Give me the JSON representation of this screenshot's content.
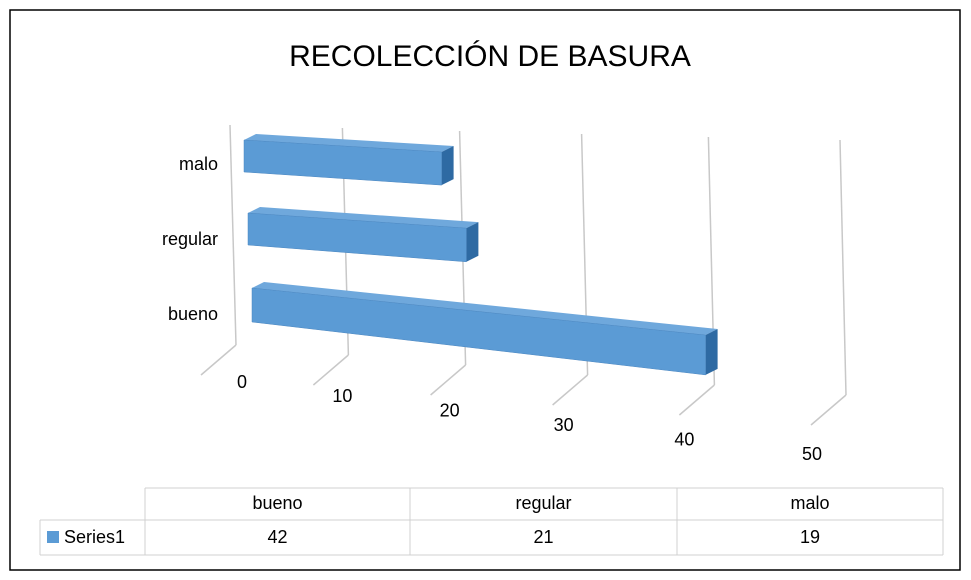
{
  "chart_data": {
    "type": "bar3d",
    "title": "RECOLECCIÓN DE BASURA",
    "categories": [
      "bueno",
      "regular",
      "malo"
    ],
    "series": [
      {
        "name": "Series1",
        "color": "#5b9bd5",
        "values": [
          42,
          21,
          19
        ]
      }
    ],
    "xlim": [
      0,
      50
    ],
    "xticks": [
      0,
      10,
      20,
      30,
      40,
      50
    ],
    "grid": true,
    "data_table": true
  }
}
